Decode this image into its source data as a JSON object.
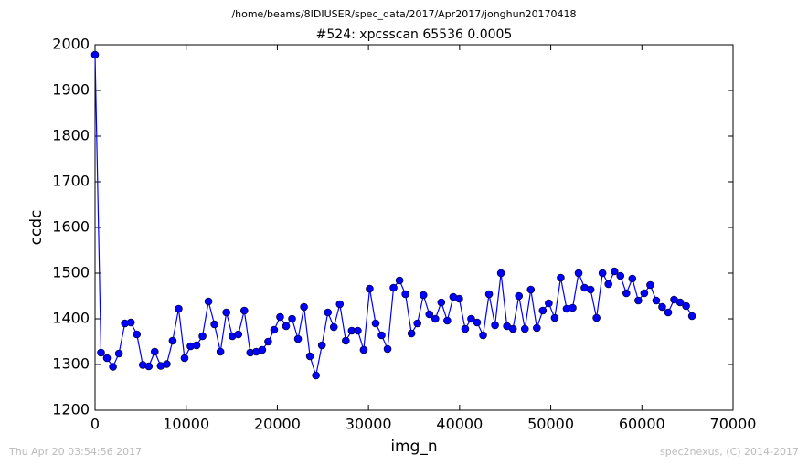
{
  "chart_data": {
    "type": "line",
    "suptitle": "/home/beams/8IDIUSER/spec_data/2017/Apr2017/jonghun20170418",
    "title": "#524: xpcsscan 65536 0.0005",
    "xlabel": "img_n",
    "ylabel": "ccdc",
    "footer_left": "Thu Apr 20 03:54:56 2017",
    "footer_right": "spec2nexus, (C) 2014-2017",
    "color": "#0000ff",
    "x": [
      0,
      655,
      1310,
      1965,
      2620,
      3275,
      3930,
      4585,
      5240,
      5895,
      6550,
      7205,
      7860,
      8515,
      9170,
      9825,
      10480,
      11135,
      11790,
      12445,
      13100,
      13755,
      14410,
      15065,
      15720,
      16375,
      17030,
      17685,
      18340,
      18995,
      19650,
      20305,
      20960,
      21615,
      22270,
      22925,
      23580,
      24235,
      24890,
      25545,
      26200,
      26855,
      27510,
      28165,
      28820,
      29475,
      30130,
      30785,
      31440,
      32095,
      32750,
      33405,
      34060,
      34715,
      35370,
      36025,
      36680,
      37335,
      37990,
      38645,
      39300,
      39955,
      40610,
      41265,
      41920,
      42575,
      43230,
      43885,
      44540,
      45195,
      45850,
      46505,
      47160,
      47815,
      48470,
      49125,
      49780,
      50435,
      51090,
      51745,
      52400,
      53055,
      53710,
      54365,
      55020,
      55675,
      56330,
      56985,
      57640,
      58295,
      58950,
      59605,
      60260,
      60915,
      61570,
      62225,
      62880,
      63535,
      64190,
      64845,
      65500
    ],
    "values": [
      1978,
      1326,
      1314,
      1295,
      1324,
      1390,
      1392,
      1366,
      1299,
      1296,
      1328,
      1297,
      1301,
      1352,
      1422,
      1314,
      1340,
      1342,
      1362,
      1438,
      1388,
      1328,
      1414,
      1362,
      1366,
      1418,
      1326,
      1328,
      1332,
      1350,
      1376,
      1404,
      1384,
      1400,
      1356,
      1426,
      1318,
      1276,
      1342,
      1414,
      1382,
      1432,
      1352,
      1374,
      1374,
      1332,
      1466,
      1390,
      1364,
      1334,
      1468,
      1484,
      1454,
      1368,
      1390,
      1452,
      1410,
      1400,
      1436,
      1396,
      1448,
      1444,
      1378,
      1400,
      1392,
      1364,
      1454,
      1386,
      1500,
      1384,
      1378,
      1450,
      1378,
      1464,
      1380,
      1418,
      1434,
      1402,
      1490,
      1422,
      1424,
      1500,
      1468,
      1464,
      1402,
      1500,
      1476,
      1504,
      1494,
      1456,
      1488,
      1440,
      1456,
      1474,
      1440,
      1426,
      1414,
      1442,
      1436,
      1428,
      1406
    ],
    "xlim": [
      0,
      70000
    ],
    "xticks": [
      0,
      10000,
      20000,
      30000,
      40000,
      50000,
      60000,
      70000
    ],
    "ylim": [
      1200,
      2000
    ],
    "yticks": [
      1200,
      1300,
      1400,
      1500,
      1600,
      1700,
      1800,
      1900,
      2000
    ]
  }
}
